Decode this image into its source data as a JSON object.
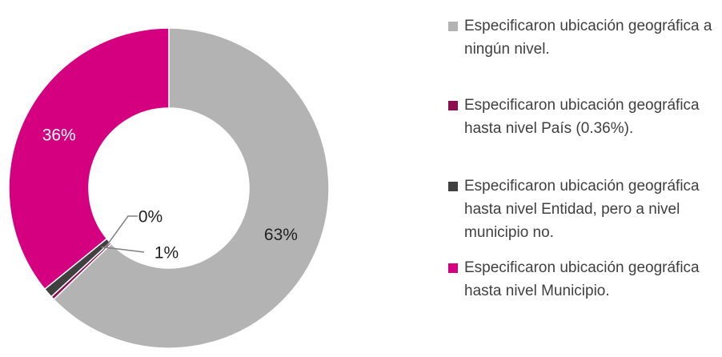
{
  "chart_data": {
    "type": "donut",
    "categories": [
      "Especificaron ubicación geográfica a ningún nivel.",
      "Especificaron ubicación geográfica hasta nivel País (0.36%).",
      "Especificaron ubicación geográfica hasta nivel Entidad, pero a nivel municipio no.",
      "Especificaron ubicación geográfica hasta nivel Municipio."
    ],
    "values": [
      63,
      0.36,
      1,
      36
    ],
    "value_labels": [
      "63%",
      "0%",
      "1%",
      "36%"
    ],
    "colors": [
      "#b3b3b3",
      "#8c0f52",
      "#404040",
      "#d4007f"
    ],
    "legend": "right"
  }
}
